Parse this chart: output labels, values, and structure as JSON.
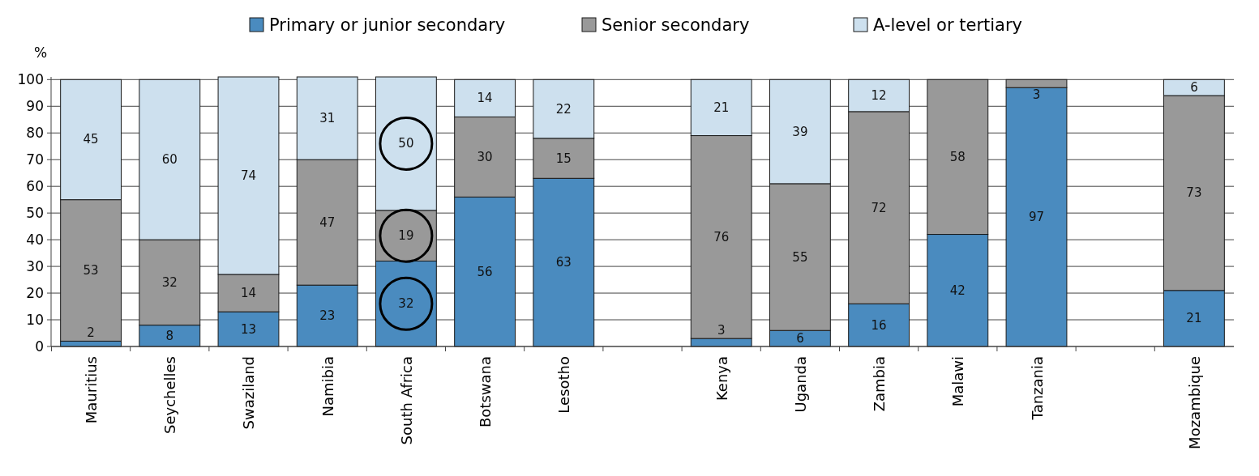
{
  "chart_data": {
    "type": "bar",
    "stacked": true,
    "ylabel": "%",
    "categories": [
      "Mauritius",
      "Seychelles",
      "Swaziland",
      "Namibia",
      "South Africa",
      "Botswana",
      "Lesotho",
      null,
      "Kenya",
      "Uganda",
      "Zambia",
      "Malawi",
      "Tanzania",
      null,
      "Mozambique"
    ],
    "series": [
      {
        "name": "Primary or junior secondary",
        "color": "#4a8bbf",
        "values": [
          2,
          8,
          13,
          23,
          32,
          56,
          63,
          null,
          3,
          6,
          16,
          42,
          97,
          null,
          21
        ]
      },
      {
        "name": "Senior secondary",
        "color": "#999999",
        "values": [
          53,
          32,
          14,
          47,
          19,
          30,
          15,
          null,
          76,
          55,
          72,
          58,
          3,
          null,
          73
        ]
      },
      {
        "name": "A-level or tertiary",
        "color": "#cde0ee",
        "values": [
          45,
          60,
          74,
          31,
          50,
          14,
          22,
          null,
          21,
          39,
          12,
          null,
          null,
          null,
          6
        ]
      }
    ],
    "ylim": [
      0,
      101
    ],
    "yticks": [
      0,
      10,
      20,
      30,
      40,
      50,
      60,
      70,
      80,
      90,
      100
    ],
    "grid": "y",
    "legend": "top",
    "data_labels": true
  }
}
